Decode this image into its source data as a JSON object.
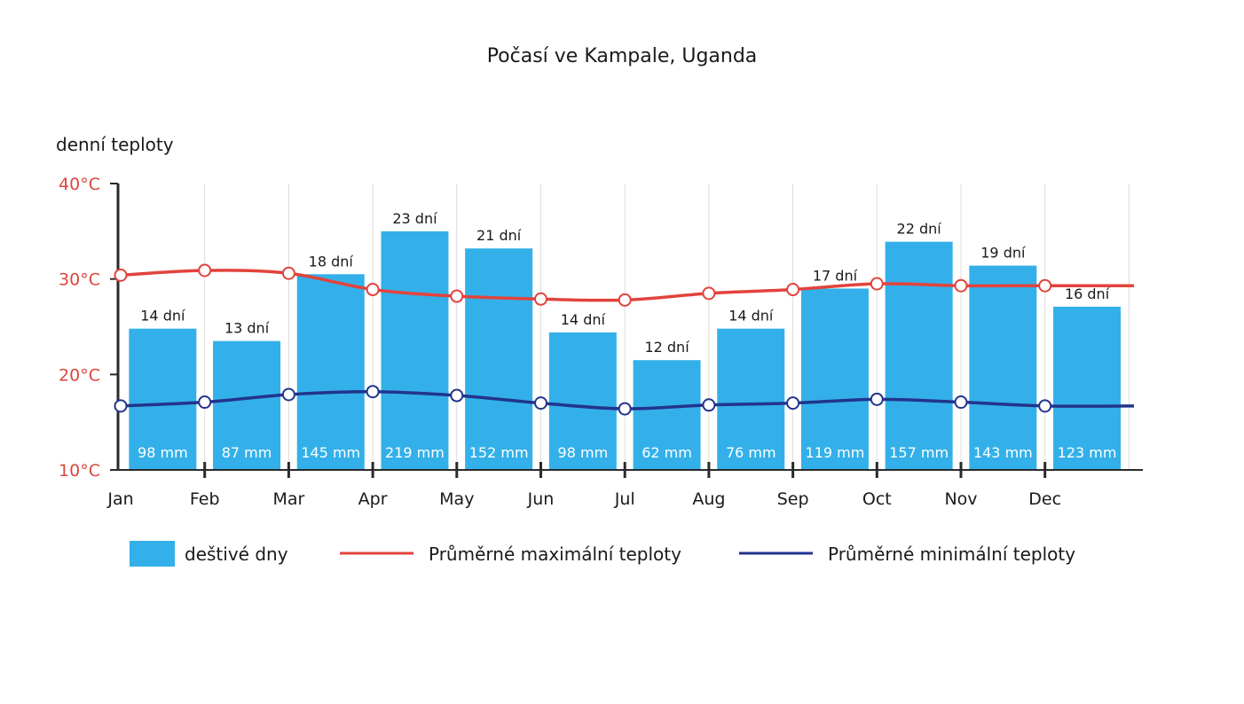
{
  "chart_data": {
    "type": "bar",
    "title": "Počasí ve Kampale, Uganda",
    "ylabel": "denní teploty",
    "ylim": [
      10,
      40
    ],
    "yticks": [
      "40°C",
      "30°C",
      "20°C",
      "10°C"
    ],
    "ytick_values": [
      40,
      30,
      20,
      10
    ],
    "categories": [
      "Jan",
      "Feb",
      "Mar",
      "Apr",
      "May",
      "Jun",
      "Jul",
      "Aug",
      "Sep",
      "Oct",
      "Nov",
      "Dec"
    ],
    "grid": true,
    "legend_position": "bottom",
    "series": [
      {
        "name": "deštivé dny",
        "type": "bar",
        "color": "#33b0e9",
        "values": [
          14,
          13,
          18,
          23,
          21,
          14,
          12,
          14,
          17,
          22,
          19,
          16
        ],
        "labels": [
          "14 dní",
          "13 dní",
          "18 dní",
          "23 dní",
          "21 dní",
          "14 dní",
          "12 dní",
          "14 dní",
          "17 dní",
          "22 dní",
          "19 dní",
          "16 dní"
        ],
        "bar_top_temperature_scale": [
          24.8,
          23.5,
          30.5,
          35.0,
          33.2,
          24.4,
          21.5,
          24.8,
          29.0,
          33.9,
          31.4,
          27.1
        ],
        "precipitation_labels": [
          "98 mm",
          "87 mm",
          "145 mm",
          "219 mm",
          "152 mm",
          "98 mm",
          "62 mm",
          "76 mm",
          "119 mm",
          "157 mm",
          "143 mm",
          "123 mm"
        ]
      },
      {
        "name": "Průměrné maximální teploty",
        "type": "line",
        "color": "#e2433c",
        "values": [
          30.4,
          30.9,
          30.6,
          28.9,
          28.2,
          27.9,
          27.8,
          28.5,
          28.9,
          29.5,
          29.3,
          29.3
        ]
      },
      {
        "name": "Průměrné minimální teploty",
        "type": "line",
        "color": "#22348c",
        "values": [
          16.7,
          17.1,
          17.9,
          18.2,
          17.8,
          17.0,
          16.4,
          16.8,
          17.0,
          17.4,
          17.1,
          16.7
        ]
      }
    ]
  },
  "colors": {
    "axis": "#2a2a2a",
    "grid": "#dddddd",
    "tick_text": "#d9473f"
  }
}
